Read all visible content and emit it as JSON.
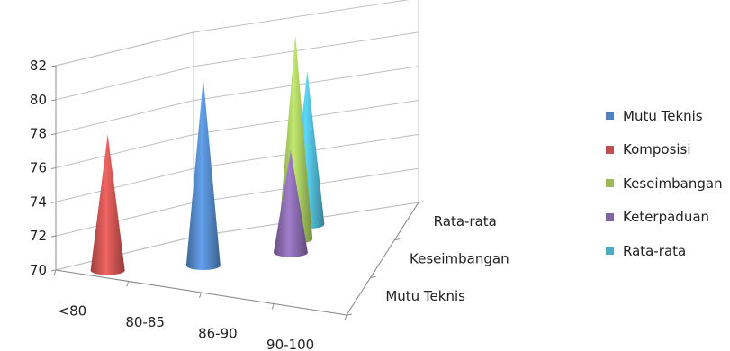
{
  "chart_data": {
    "type": "bar",
    "subtype": "3d-cone",
    "title": "",
    "y_axis": {
      "min": 70,
      "max": 82,
      "ticks": [
        "70",
        "72",
        "74",
        "76",
        "78",
        "80",
        "82"
      ]
    },
    "x_categories": [
      "<80",
      "80-85",
      "86-90",
      "90-100"
    ],
    "depth_categories": [
      "Mutu Teknis",
      "Keseimbangan",
      "Rata-rata"
    ],
    "legend_position": "right",
    "grid": true,
    "series": [
      {
        "name": "Mutu Teknis",
        "color": "#4F81BD",
        "values": [
          null,
          81,
          null,
          null
        ]
      },
      {
        "name": "Komposisi",
        "color": "#C0504D",
        "values": [
          78,
          null,
          null,
          null
        ]
      },
      {
        "name": "Keseimbangan",
        "color": "#9BBB59",
        "values": [
          null,
          null,
          82,
          null
        ]
      },
      {
        "name": "Keterpaduan",
        "color": "#8064A2",
        "values": [
          null,
          null,
          76,
          null
        ]
      },
      {
        "name": "Rata-rata",
        "color": "#4BACC6",
        "values": [
          null,
          null,
          79,
          null
        ]
      }
    ]
  }
}
